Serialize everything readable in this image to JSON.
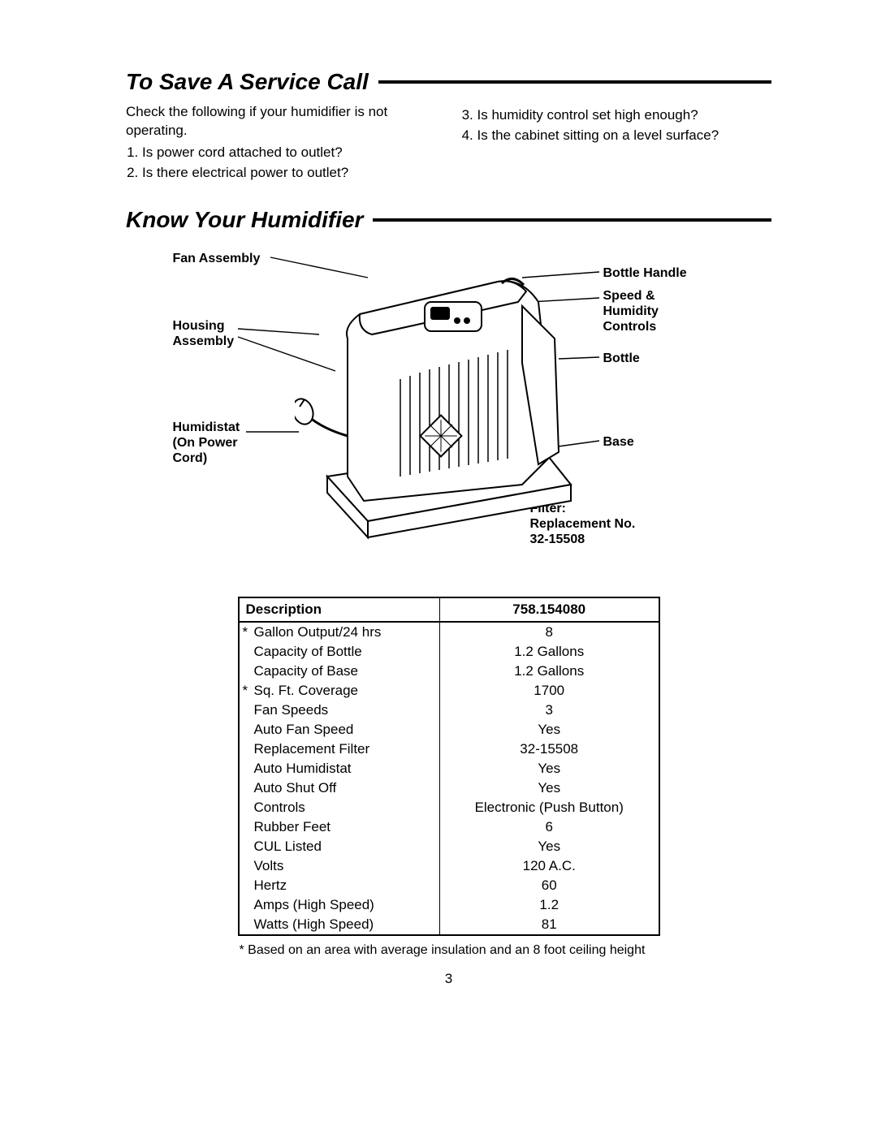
{
  "section1": {
    "heading": "To Save A Service Call",
    "intro": "Check the following if your humidifier is not operating.",
    "items_left": [
      "Is power cord attached to outlet?",
      "Is there electrical power to outlet?"
    ],
    "items_right": [
      "Is humidity control set high enough?",
      "Is the cabinet sitting on a level surface?"
    ]
  },
  "section2": {
    "heading": "Know Your Humidifier",
    "labels": {
      "fan_assembly": "Fan Assembly",
      "housing_assembly": "Housing\nAssembly",
      "humidistat": "Humidistat\n(On Power\nCord)",
      "bottle_handle": "Bottle Handle",
      "speed_humidity": "Speed &\nHumidity\nControls",
      "bottle": "Bottle",
      "base": "Base",
      "filter": "Filter:\nReplacement No.\n32-15508"
    }
  },
  "spec_table": {
    "columns": [
      "Description",
      "758.154080"
    ],
    "rows": [
      {
        "star": true,
        "desc": "Gallon Output/24 hrs",
        "val": "8"
      },
      {
        "star": false,
        "desc": "Capacity of Bottle",
        "val": "1.2 Gallons"
      },
      {
        "star": false,
        "desc": "Capacity of Base",
        "val": "1.2 Gallons"
      },
      {
        "star": true,
        "desc": "Sq. Ft. Coverage",
        "val": "1700"
      },
      {
        "star": false,
        "desc": "Fan Speeds",
        "val": "3"
      },
      {
        "star": false,
        "desc": "Auto Fan Speed",
        "val": "Yes"
      },
      {
        "star": false,
        "desc": "Replacement Filter",
        "val": "32-15508"
      },
      {
        "star": false,
        "desc": "Auto Humidistat",
        "val": "Yes"
      },
      {
        "star": false,
        "desc": "Auto Shut Off",
        "val": "Yes"
      },
      {
        "star": false,
        "desc": "Controls",
        "val": "Electronic (Push Button)"
      },
      {
        "star": false,
        "desc": "Rubber Feet",
        "val": "6"
      },
      {
        "star": false,
        "desc": "CUL Listed",
        "val": "Yes"
      },
      {
        "star": false,
        "desc": "Volts",
        "val": "120 A.C."
      },
      {
        "star": false,
        "desc": "Hertz",
        "val": "60"
      },
      {
        "star": false,
        "desc": "Amps (High Speed)",
        "val": "1.2"
      },
      {
        "star": false,
        "desc": "Watts (High Speed)",
        "val": "81"
      }
    ]
  },
  "footnote": "* Based on an area with average insulation and an 8 foot ceiling height",
  "page_number": "3",
  "colors": {
    "text": "#000000",
    "background": "#ffffff",
    "rule": "#000000",
    "table_border": "#000000"
  },
  "typography": {
    "heading_fontsize_pt": 21,
    "body_fontsize_pt": 13,
    "label_fontsize_pt": 12,
    "font_family": "Arial"
  }
}
